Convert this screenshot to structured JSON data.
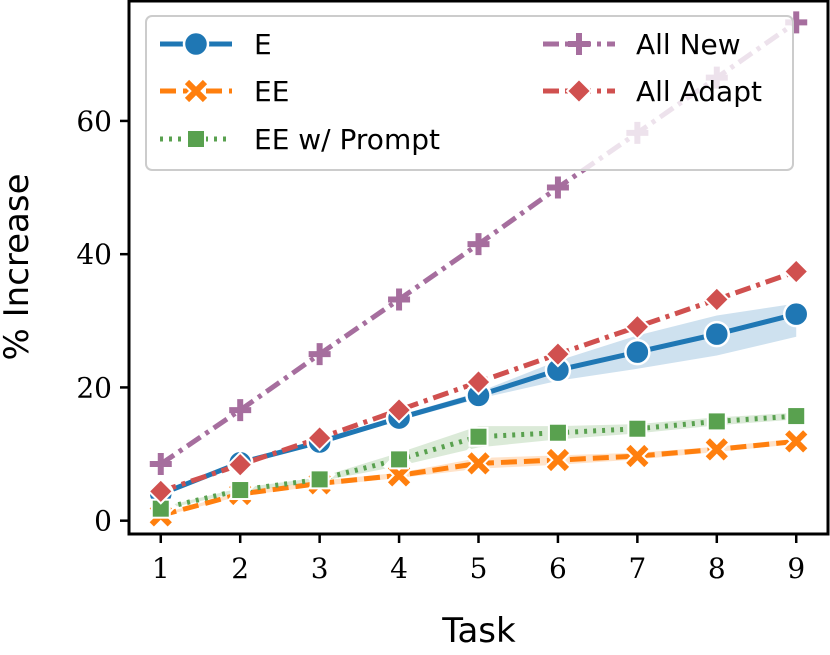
{
  "chart_data": {
    "type": "line",
    "xlabel": "Task",
    "ylabel": "% Increase",
    "x": [
      1,
      2,
      3,
      4,
      5,
      6,
      7,
      8,
      9
    ],
    "xlim": [
      0.6,
      9.4
    ],
    "ylim": [
      -2,
      78
    ],
    "yticks": [
      0,
      20,
      40,
      60
    ],
    "grid": false,
    "legend_position": "top",
    "series": [
      {
        "name": "E",
        "values": [
          4.0,
          8.7,
          11.8,
          15.4,
          18.8,
          22.6,
          25.3,
          28.0,
          31.0
        ],
        "band_low": [
          4.0,
          8.4,
          11.5,
          15.0,
          18.3,
          21.0,
          22.8,
          24.8,
          27.6
        ],
        "band_high": [
          4.0,
          9.0,
          12.1,
          15.8,
          19.3,
          24.0,
          27.8,
          30.8,
          32.6
        ],
        "color": "#1f77b4",
        "dash": "solid",
        "marker": "circle"
      },
      {
        "name": "EE",
        "values": [
          0.8,
          4.0,
          5.6,
          6.8,
          8.6,
          9.1,
          9.7,
          10.7,
          11.9
        ],
        "band_low": [
          0.6,
          3.7,
          5.2,
          6.4,
          7.8,
          8.4,
          9.2,
          10.3,
          11.5
        ],
        "band_high": [
          1.0,
          4.3,
          6.0,
          7.2,
          9.4,
          9.8,
          10.2,
          11.1,
          12.3
        ],
        "color": "#ff7f0e",
        "dash": "dashed",
        "marker": "x"
      },
      {
        "name": "EE w/ Prompt",
        "values": [
          1.8,
          4.6,
          6.2,
          9.2,
          12.6,
          13.2,
          13.8,
          14.9,
          15.7
        ],
        "band_low": [
          1.6,
          4.3,
          5.9,
          8.2,
          11.0,
          12.2,
          13.1,
          14.3,
          15.2
        ],
        "band_high": [
          2.0,
          4.9,
          6.5,
          10.2,
          14.2,
          14.2,
          14.5,
          15.5,
          16.2
        ],
        "color": "#59a14f",
        "dash": "dotted",
        "marker": "square"
      },
      {
        "name": "All New",
        "values": [
          8.5,
          16.6,
          25.0,
          33.2,
          41.5,
          50.0,
          58.2,
          66.5,
          74.8
        ],
        "color": "#a66e9e",
        "dash": "dashdot",
        "marker": "plus"
      },
      {
        "name": "All Adapt",
        "values": [
          4.4,
          8.4,
          12.4,
          16.6,
          20.8,
          25.0,
          29.1,
          33.2,
          37.4
        ],
        "color": "#d0504f",
        "dash": "dashdot",
        "marker": "diamond"
      }
    ]
  }
}
